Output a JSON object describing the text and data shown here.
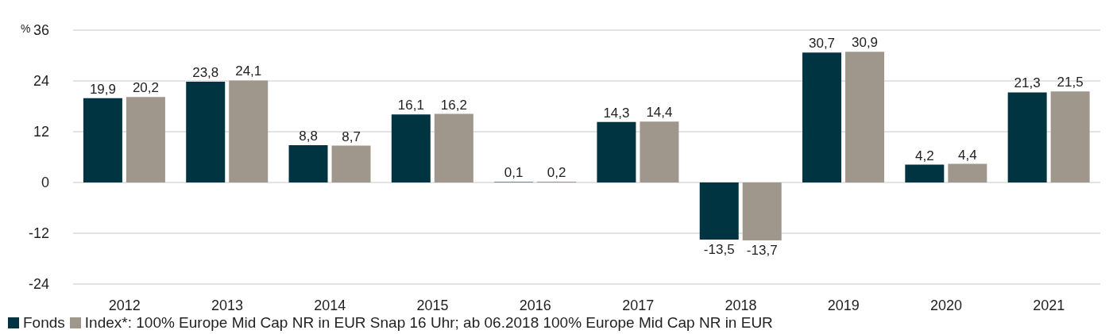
{
  "chart_data": {
    "type": "bar",
    "ylabel": "%",
    "categories": [
      "2012",
      "2013",
      "2014",
      "2015",
      "2016",
      "2017",
      "2018",
      "2019",
      "2020",
      "2021"
    ],
    "series": [
      {
        "name": "Fonds",
        "color": "#003441",
        "values": [
          19.9,
          23.8,
          8.8,
          16.1,
          0.1,
          14.3,
          -13.5,
          30.7,
          4.2,
          21.3
        ],
        "value_labels": [
          "19,9",
          "23,8",
          "8,8",
          "16,1",
          "0,1",
          "14,3",
          "-13,5",
          "30,7",
          "4,2",
          "21,3"
        ]
      },
      {
        "name": "Index*: 100% Europe Mid Cap NR in EUR Snap 16 Uhr; ab 06.2018 100% Europe Mid Cap NR in EUR",
        "color": "#a0978c",
        "values": [
          20.2,
          24.1,
          8.7,
          16.2,
          0.2,
          14.4,
          -13.7,
          30.9,
          4.4,
          21.5
        ],
        "value_labels": [
          "20,2",
          "24,1",
          "8,7",
          "16,2",
          "0,2",
          "14,4",
          "-13,7",
          "30,9",
          "4,4",
          "21,5"
        ]
      }
    ],
    "ylim": [
      -24,
      36
    ],
    "yticks": [
      -24,
      -12,
      0,
      12,
      24,
      36
    ],
    "grid": "y",
    "legend": "bottom"
  }
}
